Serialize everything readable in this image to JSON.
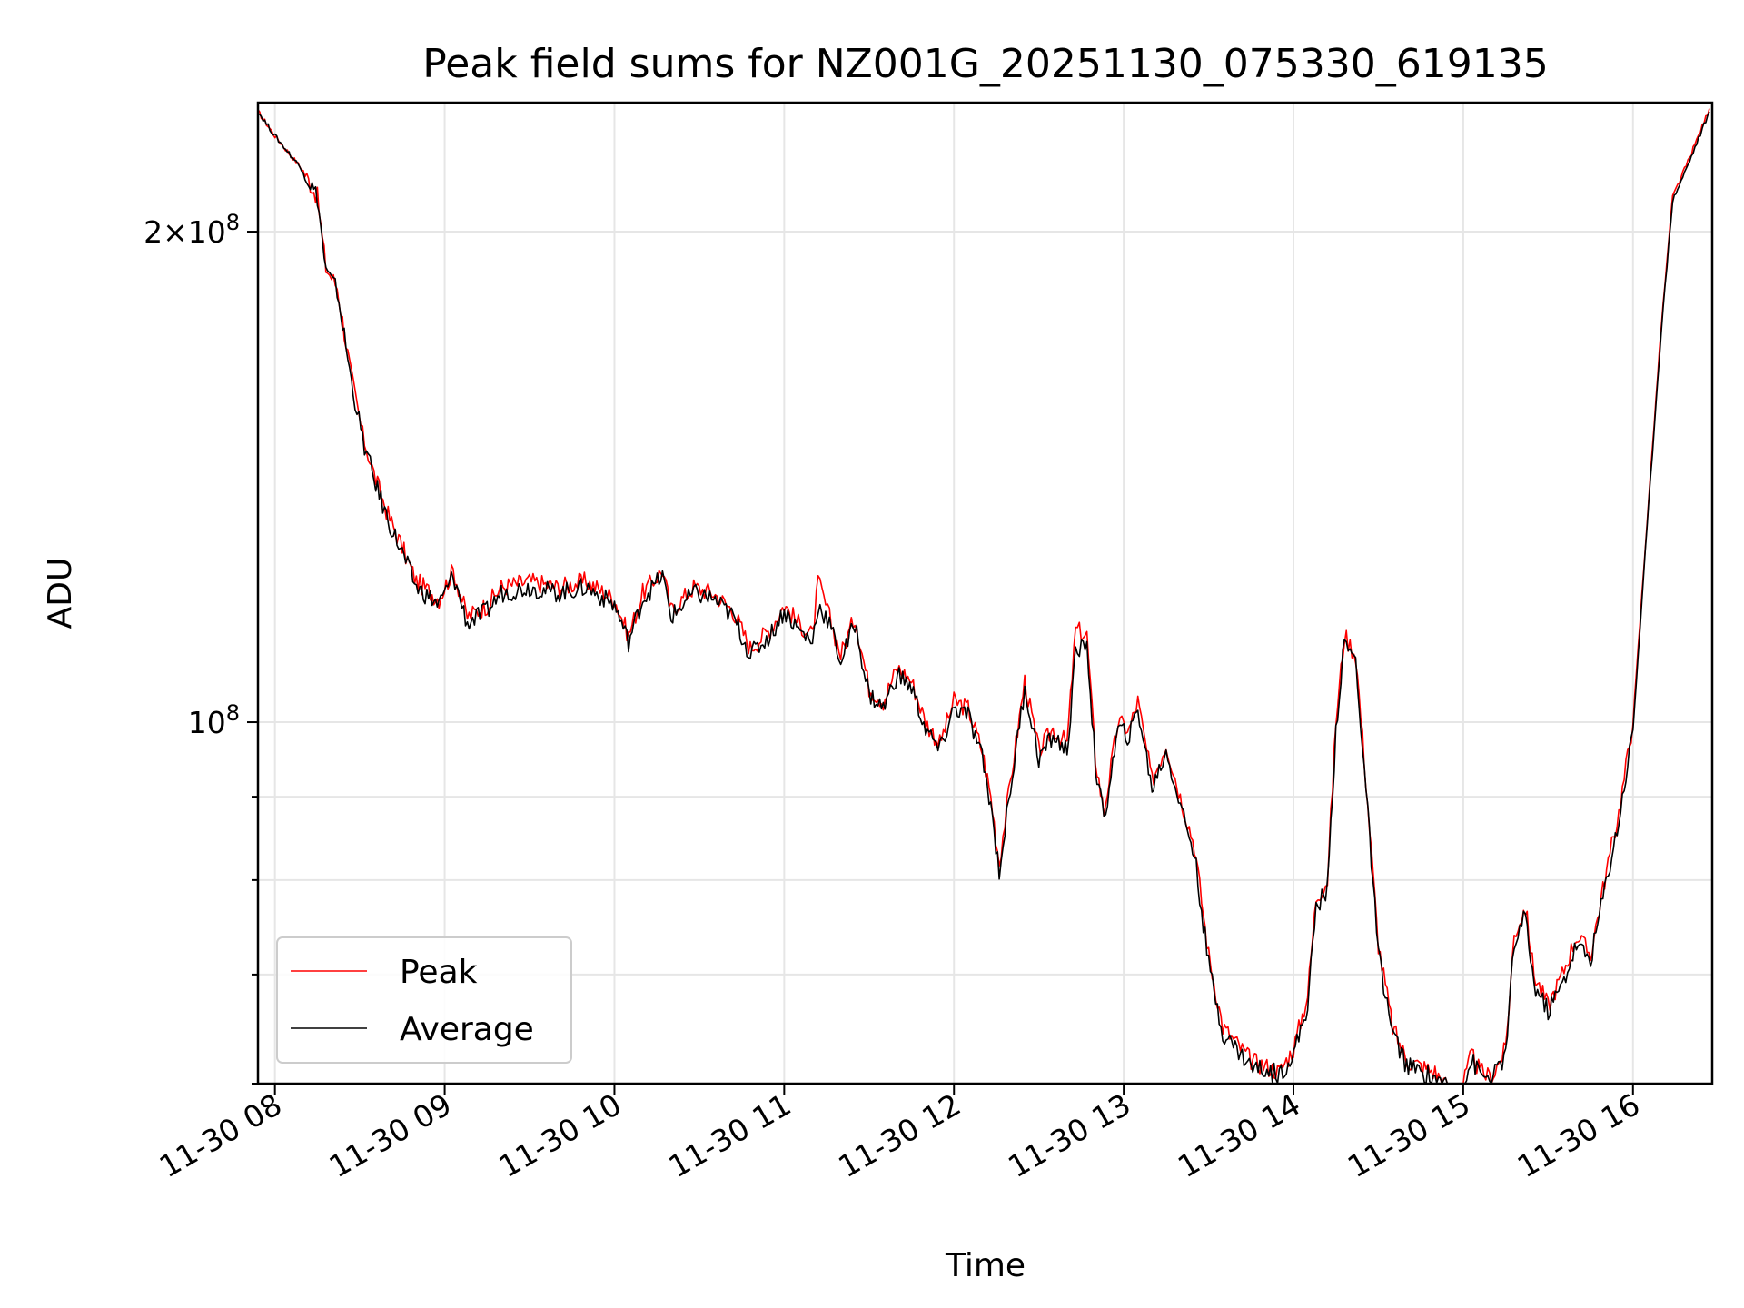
{
  "chart_data": {
    "type": "line",
    "title": "Peak field sums for NZ001G_20251130_075330_619135",
    "xlabel": "Time",
    "ylabel": "ADU",
    "y_scale": "log",
    "xlim": [
      "2025-11-30 07:54",
      "2025-11-30 16:28"
    ],
    "ylim": [
      60000000,
      240000000
    ],
    "x_ticks": [
      "11-30 08",
      "11-30 09",
      "11-30 10",
      "11-30 11",
      "11-30 12",
      "11-30 13",
      "11-30 14",
      "11-30 15",
      "11-30 16"
    ],
    "y_major_ticks": [
      {
        "value": 100000000,
        "label": "10^8"
      },
      {
        "value": 200000000,
        "label": "2×10^8"
      }
    ],
    "y_minor_ticks": [
      60000000,
      70000000,
      80000000,
      90000000
    ],
    "grid": true,
    "legend": {
      "position": "lower-left",
      "entries": [
        "Peak",
        "Average"
      ]
    },
    "series": [
      {
        "name": "Peak",
        "color": "#ff0000",
        "points": [
          [
            "2025-11-30 07:54",
            237000000
          ],
          [
            "2025-11-30 08:00",
            229000000
          ],
          [
            "2025-11-30 08:10",
            218000000
          ],
          [
            "2025-11-30 08:15",
            210000000
          ],
          [
            "2025-11-30 08:18",
            190000000
          ],
          [
            "2025-11-30 08:22",
            185000000
          ],
          [
            "2025-11-30 08:27",
            163000000
          ],
          [
            "2025-11-30 08:31",
            150000000
          ],
          [
            "2025-11-30 08:35",
            142000000
          ],
          [
            "2025-11-30 08:40",
            134000000
          ],
          [
            "2025-11-30 08:45",
            128000000
          ],
          [
            "2025-11-30 08:50",
            122000000
          ],
          [
            "2025-11-30 08:58",
            119000000
          ],
          [
            "2025-11-30 09:03",
            124000000
          ],
          [
            "2025-11-30 09:08",
            116000000
          ],
          [
            "2025-11-30 09:15",
            118000000
          ],
          [
            "2025-11-30 09:20",
            121000000
          ],
          [
            "2025-11-30 09:30",
            122000000
          ],
          [
            "2025-11-30 09:40",
            121000000
          ],
          [
            "2025-11-30 09:50",
            122000000
          ],
          [
            "2025-11-30 10:00",
            119000000
          ],
          [
            "2025-11-30 10:05",
            113000000
          ],
          [
            "2025-11-30 10:10",
            120000000
          ],
          [
            "2025-11-30 10:17",
            124000000
          ],
          [
            "2025-11-30 10:20",
            117000000
          ],
          [
            "2025-11-30 10:28",
            121000000
          ],
          [
            "2025-11-30 10:35",
            120000000
          ],
          [
            "2025-11-30 10:42",
            117000000
          ],
          [
            "2025-11-30 10:48",
            111000000
          ],
          [
            "2025-11-30 10:55",
            114000000
          ],
          [
            "2025-11-30 11:00",
            118000000
          ],
          [
            "2025-11-30 11:05",
            115000000
          ],
          [
            "2025-11-30 11:10",
            113000000
          ],
          [
            "2025-11-30 11:12",
            122000000
          ],
          [
            "2025-11-30 11:16",
            116000000
          ],
          [
            "2025-11-30 11:20",
            110000000
          ],
          [
            "2025-11-30 11:25",
            116000000
          ],
          [
            "2025-11-30 11:30",
            105000000
          ],
          [
            "2025-11-30 11:35",
            103000000
          ],
          [
            "2025-11-30 11:40",
            108000000
          ],
          [
            "2025-11-30 11:45",
            106000000
          ],
          [
            "2025-11-30 11:50",
            100000000
          ],
          [
            "2025-11-30 11:55",
            97000000
          ],
          [
            "2025-11-30 12:00",
            103000000
          ],
          [
            "2025-11-30 12:05",
            102000000
          ],
          [
            "2025-11-30 12:10",
            96000000
          ],
          [
            "2025-11-30 12:13",
            90000000
          ],
          [
            "2025-11-30 12:16",
            82000000
          ],
          [
            "2025-11-30 12:20",
            92000000
          ],
          [
            "2025-11-30 12:25",
            106000000
          ],
          [
            "2025-11-30 12:30",
            96000000
          ],
          [
            "2025-11-30 12:35",
            99000000
          ],
          [
            "2025-11-30 12:40",
            97000000
          ],
          [
            "2025-11-30 12:43",
            114000000
          ],
          [
            "2025-11-30 12:47",
            113000000
          ],
          [
            "2025-11-30 12:50",
            95000000
          ],
          [
            "2025-11-30 12:53",
            88000000
          ],
          [
            "2025-11-30 12:58",
            100000000
          ],
          [
            "2025-11-30 13:02",
            99000000
          ],
          [
            "2025-11-30 13:05",
            103000000
          ],
          [
            "2025-11-30 13:10",
            92000000
          ],
          [
            "2025-11-30 13:15",
            97000000
          ],
          [
            "2025-11-30 13:20",
            90000000
          ],
          [
            "2025-11-30 13:25",
            84000000
          ],
          [
            "2025-11-30 13:30",
            72000000
          ],
          [
            "2025-11-30 13:35",
            65000000
          ],
          [
            "2025-11-30 13:45",
            62000000
          ],
          [
            "2025-11-30 13:55",
            61000000
          ],
          [
            "2025-11-30 14:00",
            63000000
          ],
          [
            "2025-11-30 14:05",
            68000000
          ],
          [
            "2025-11-30 14:08",
            78000000
          ],
          [
            "2025-11-30 14:12",
            80000000
          ],
          [
            "2025-11-30 14:15",
            100000000
          ],
          [
            "2025-11-30 14:18",
            113000000
          ],
          [
            "2025-11-30 14:22",
            110000000
          ],
          [
            "2025-11-30 14:25",
            95000000
          ],
          [
            "2025-11-30 14:30",
            73000000
          ],
          [
            "2025-11-30 14:35",
            65000000
          ],
          [
            "2025-11-30 14:40",
            62000000
          ],
          [
            "2025-11-30 14:50",
            61000000
          ],
          [
            "2025-11-30 14:55",
            59500000
          ],
          [
            "2025-11-30 15:00",
            60000000
          ],
          [
            "2025-11-30 15:03",
            62500000
          ],
          [
            "2025-11-30 15:06",
            61000000
          ],
          [
            "2025-11-30 15:10",
            60500000
          ],
          [
            "2025-11-30 15:15",
            63000000
          ],
          [
            "2025-11-30 15:18",
            74000000
          ],
          [
            "2025-11-30 15:22",
            77000000
          ],
          [
            "2025-11-30 15:25",
            70000000
          ],
          [
            "2025-11-30 15:30",
            67000000
          ],
          [
            "2025-11-30 15:35",
            70000000
          ],
          [
            "2025-11-30 15:40",
            74000000
          ],
          [
            "2025-11-30 15:45",
            72000000
          ],
          [
            "2025-11-30 15:50",
            80000000
          ],
          [
            "2025-11-30 15:55",
            88000000
          ],
          [
            "2025-11-30 16:00",
            100000000
          ],
          [
            "2025-11-30 16:05",
            133000000
          ],
          [
            "2025-11-30 16:10",
            175000000
          ],
          [
            "2025-11-30 16:14",
            210000000
          ],
          [
            "2025-11-30 16:20",
            222000000
          ],
          [
            "2025-11-30 16:27",
            238000000
          ]
        ]
      },
      {
        "name": "Average",
        "color": "#000000",
        "points": [
          [
            "2025-11-30 07:54",
            237000000
          ],
          [
            "2025-11-30 08:00",
            229000000
          ],
          [
            "2025-11-30 08:10",
            218000000
          ],
          [
            "2025-11-30 08:15",
            210000000
          ],
          [
            "2025-11-30 08:18",
            189000000
          ],
          [
            "2025-11-30 08:22",
            184000000
          ],
          [
            "2025-11-30 08:27",
            162000000
          ],
          [
            "2025-11-30 08:31",
            149000000
          ],
          [
            "2025-11-30 08:35",
            141000000
          ],
          [
            "2025-11-30 08:40",
            133000000
          ],
          [
            "2025-11-30 08:45",
            127000000
          ],
          [
            "2025-11-30 08:50",
            121000000
          ],
          [
            "2025-11-30 08:58",
            118000000
          ],
          [
            "2025-11-30 09:03",
            123000000
          ],
          [
            "2025-11-30 09:08",
            115000000
          ],
          [
            "2025-11-30 09:15",
            117000000
          ],
          [
            "2025-11-30 09:20",
            120000000
          ],
          [
            "2025-11-30 09:30",
            121000000
          ],
          [
            "2025-11-30 09:40",
            120000000
          ],
          [
            "2025-11-30 09:50",
            121000000
          ],
          [
            "2025-11-30 10:00",
            118000000
          ],
          [
            "2025-11-30 10:05",
            112000000
          ],
          [
            "2025-11-30 10:10",
            119000000
          ],
          [
            "2025-11-30 10:17",
            123000000
          ],
          [
            "2025-11-30 10:20",
            116000000
          ],
          [
            "2025-11-30 10:28",
            120000000
          ],
          [
            "2025-11-30 10:35",
            119000000
          ],
          [
            "2025-11-30 10:42",
            116000000
          ],
          [
            "2025-11-30 10:48",
            110000000
          ],
          [
            "2025-11-30 10:55",
            113000000
          ],
          [
            "2025-11-30 11:00",
            117000000
          ],
          [
            "2025-11-30 11:05",
            114000000
          ],
          [
            "2025-11-30 11:10",
            112000000
          ],
          [
            "2025-11-30 11:12",
            118000000
          ],
          [
            "2025-11-30 11:16",
            115000000
          ],
          [
            "2025-11-30 11:20",
            109000000
          ],
          [
            "2025-11-30 11:25",
            115000000
          ],
          [
            "2025-11-30 11:30",
            104000000
          ],
          [
            "2025-11-30 11:35",
            102000000
          ],
          [
            "2025-11-30 11:40",
            107000000
          ],
          [
            "2025-11-30 11:45",
            105000000
          ],
          [
            "2025-11-30 11:50",
            99000000
          ],
          [
            "2025-11-30 11:55",
            96000000
          ],
          [
            "2025-11-30 12:00",
            102000000
          ],
          [
            "2025-11-30 12:05",
            101000000
          ],
          [
            "2025-11-30 12:10",
            95000000
          ],
          [
            "2025-11-30 12:13",
            89000000
          ],
          [
            "2025-11-30 12:16",
            81000000
          ],
          [
            "2025-11-30 12:20",
            91000000
          ],
          [
            "2025-11-30 12:25",
            105000000
          ],
          [
            "2025-11-30 12:30",
            95000000
          ],
          [
            "2025-11-30 12:35",
            98000000
          ],
          [
            "2025-11-30 12:40",
            96000000
          ],
          [
            "2025-11-30 12:43",
            110000000
          ],
          [
            "2025-11-30 12:47",
            112000000
          ],
          [
            "2025-11-30 12:50",
            94000000
          ],
          [
            "2025-11-30 12:53",
            87000000
          ],
          [
            "2025-11-30 12:58",
            99000000
          ],
          [
            "2025-11-30 13:02",
            98000000
          ],
          [
            "2025-11-30 13:05",
            102000000
          ],
          [
            "2025-11-30 13:10",
            91000000
          ],
          [
            "2025-11-30 13:15",
            96000000
          ],
          [
            "2025-11-30 13:20",
            89000000
          ],
          [
            "2025-11-30 13:25",
            83000000
          ],
          [
            "2025-11-30 13:30",
            71000000
          ],
          [
            "2025-11-30 13:35",
            64500000
          ],
          [
            "2025-11-30 13:45",
            61500000
          ],
          [
            "2025-11-30 13:55",
            60800000
          ],
          [
            "2025-11-30 14:00",
            62500000
          ],
          [
            "2025-11-30 14:05",
            67000000
          ],
          [
            "2025-11-30 14:08",
            77000000
          ],
          [
            "2025-11-30 14:12",
            79000000
          ],
          [
            "2025-11-30 14:15",
            99000000
          ],
          [
            "2025-11-30 14:18",
            112000000
          ],
          [
            "2025-11-30 14:22",
            109000000
          ],
          [
            "2025-11-30 14:25",
            94000000
          ],
          [
            "2025-11-30 14:30",
            72000000
          ],
          [
            "2025-11-30 14:35",
            64500000
          ],
          [
            "2025-11-30 14:40",
            61500000
          ],
          [
            "2025-11-30 14:50",
            60500000
          ],
          [
            "2025-11-30 14:55",
            59500000
          ],
          [
            "2025-11-30 15:00",
            59800000
          ],
          [
            "2025-11-30 15:03",
            62000000
          ],
          [
            "2025-11-30 15:06",
            60800000
          ],
          [
            "2025-11-30 15:10",
            60300000
          ],
          [
            "2025-11-30 15:15",
            62500000
          ],
          [
            "2025-11-30 15:18",
            73000000
          ],
          [
            "2025-11-30 15:22",
            76000000
          ],
          [
            "2025-11-30 15:25",
            69000000
          ],
          [
            "2025-11-30 15:30",
            66500000
          ],
          [
            "2025-11-30 15:35",
            69000000
          ],
          [
            "2025-11-30 15:40",
            73000000
          ],
          [
            "2025-11-30 15:45",
            71500000
          ],
          [
            "2025-11-30 15:50",
            79000000
          ],
          [
            "2025-11-30 15:55",
            87000000
          ],
          [
            "2025-11-30 16:00",
            99000000
          ],
          [
            "2025-11-30 16:05",
            132000000
          ],
          [
            "2025-11-30 16:10",
            174000000
          ],
          [
            "2025-11-30 16:14",
            209000000
          ],
          [
            "2025-11-30 16:20",
            221000000
          ],
          [
            "2025-11-30 16:27",
            237000000
          ]
        ]
      }
    ]
  }
}
